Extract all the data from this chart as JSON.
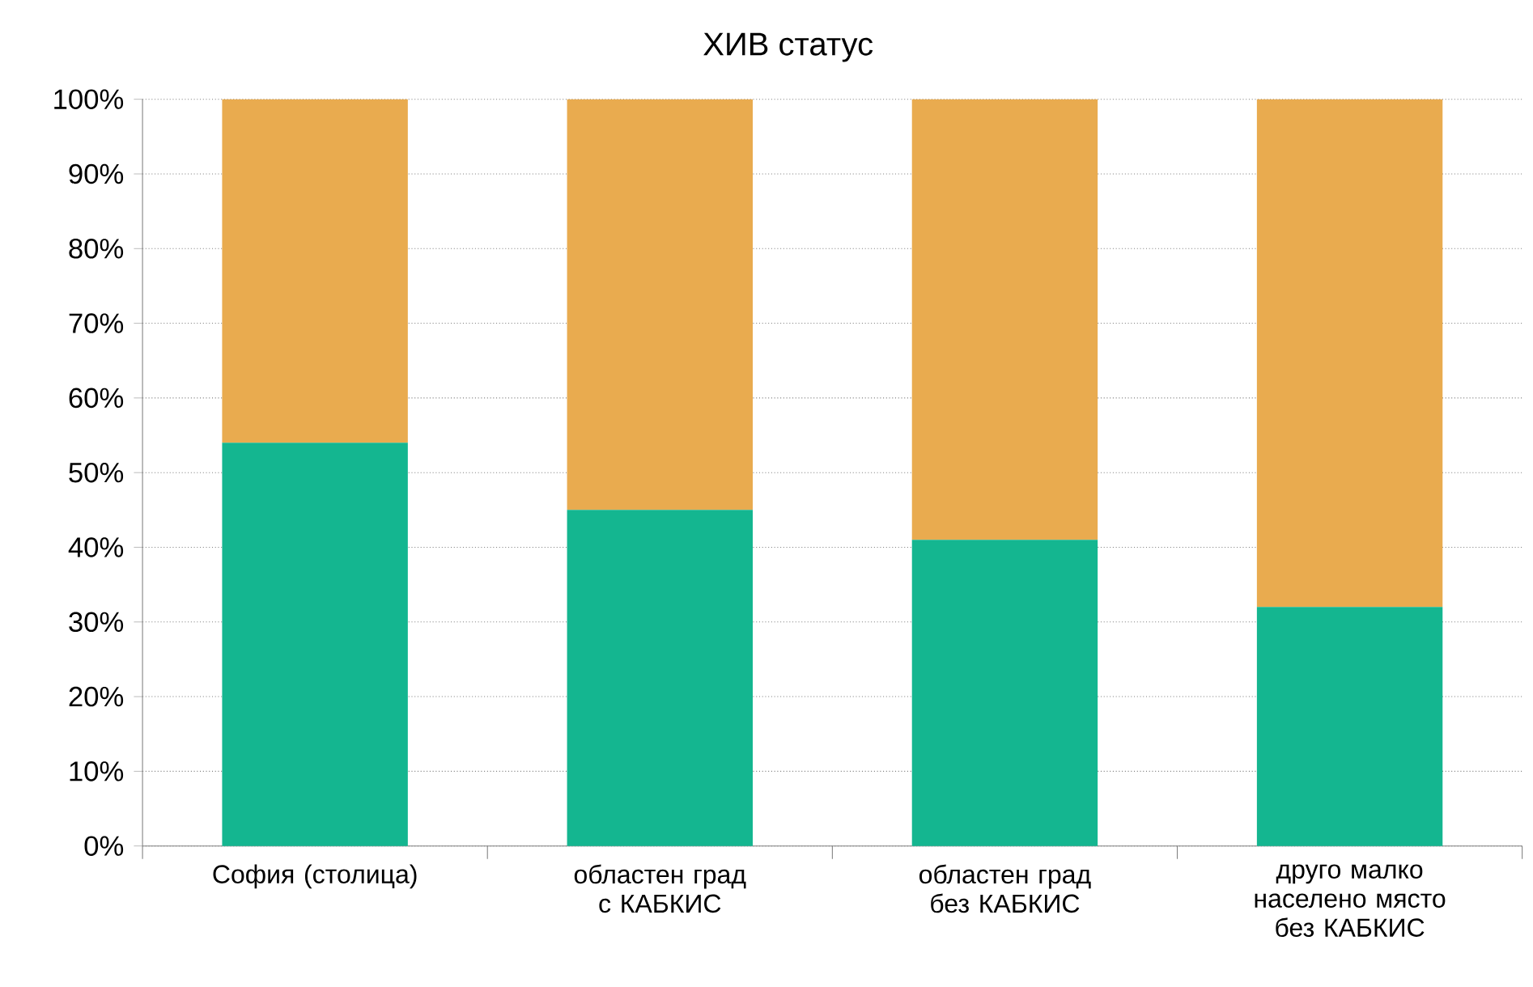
{
  "chart_data": {
    "type": "bar",
    "title": "ХИВ статус",
    "stacked": true,
    "grid": "y",
    "categories": [
      "София (столица)",
      "областен град с КАБКИС",
      "областен град без КАБКИС",
      "друго малко населено място без КАБКИС"
    ],
    "series": [
      {
        "color": "#14b690",
        "values": [
          54,
          45,
          41,
          32
        ]
      },
      {
        "color": "#e9ab4f",
        "values": [
          46,
          55,
          59,
          68
        ]
      }
    ],
    "ylim": [
      0,
      100
    ],
    "yticks": [
      {
        "value": 0,
        "label": "0%"
      },
      {
        "value": 10,
        "label": "10%"
      },
      {
        "value": 20,
        "label": "20%"
      },
      {
        "value": 30,
        "label": "30%"
      },
      {
        "value": 40,
        "label": "40%"
      },
      {
        "value": 50,
        "label": "50%"
      },
      {
        "value": 60,
        "label": "60%"
      },
      {
        "value": 70,
        "label": "70%"
      },
      {
        "value": 80,
        "label": "80%"
      },
      {
        "value": 90,
        "label": "90%"
      },
      {
        "value": 100,
        "label": "100%"
      }
    ]
  }
}
